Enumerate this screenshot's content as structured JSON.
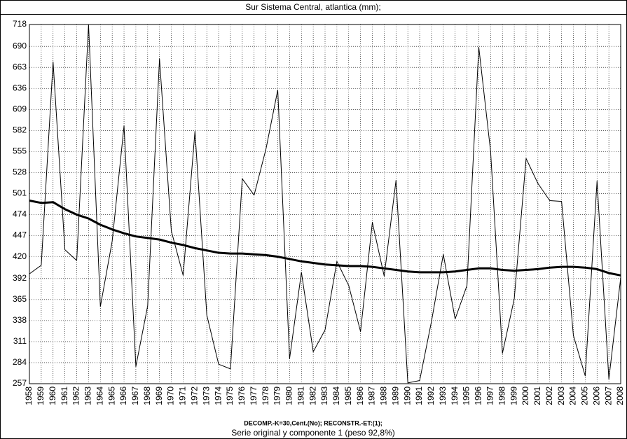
{
  "chart_data": {
    "type": "line",
    "title": "Sur Sistema Central, atlantica (mm);",
    "notes": [
      "DECOMP.-K=30,Cent.(No);   RECONSTR.-ET:(1);",
      "Serie original y componente 1 (peso 92,8%)"
    ],
    "x": [
      1958,
      1959,
      1960,
      1961,
      1962,
      1963,
      1964,
      1965,
      1966,
      1967,
      1968,
      1969,
      1970,
      1971,
      1972,
      1973,
      1974,
      1975,
      1976,
      1977,
      1978,
      1979,
      1980,
      1981,
      1982,
      1983,
      1984,
      1985,
      1986,
      1987,
      1988,
      1989,
      1990,
      1991,
      1992,
      1993,
      1994,
      1995,
      1996,
      1997,
      1998,
      1999,
      2000,
      2001,
      2002,
      2003,
      2004,
      2005,
      2006,
      2007,
      2008
    ],
    "xlim": [
      1958,
      2008
    ],
    "ylim": [
      257,
      718
    ],
    "yticks": [
      257,
      284,
      311,
      338,
      365,
      392,
      420,
      447,
      474,
      501,
      528,
      555,
      582,
      609,
      636,
      663,
      690,
      718
    ],
    "grid": true,
    "series": [
      {
        "color": "#000000",
        "line_width": 1,
        "values": [
          398,
          409,
          670,
          429,
          415,
          718,
          356,
          440,
          588,
          279,
          357,
          674,
          453,
          396,
          581,
          345,
          282,
          276,
          520,
          499,
          558,
          634,
          289,
          400,
          298,
          326,
          414,
          383,
          324,
          464,
          395,
          518,
          258,
          261,
          337,
          423,
          340,
          383,
          689,
          555,
          296,
          366,
          546,
          514,
          492,
          491,
          319,
          267,
          517,
          263,
          393
        ]
      },
      {
        "color": "#000000",
        "line_width": 3,
        "values": [
          492,
          489,
          490,
          481,
          474,
          469,
          461,
          455,
          450,
          446,
          444,
          442,
          438,
          435,
          431,
          428,
          425,
          424,
          424,
          423,
          422,
          420,
          417,
          414,
          412,
          410,
          409,
          408,
          408,
          407,
          405,
          403,
          401,
          400,
          400,
          400,
          401,
          403,
          405,
          405,
          403,
          402,
          403,
          404,
          406,
          407,
          407,
          406,
          404,
          399,
          396
        ]
      }
    ]
  }
}
